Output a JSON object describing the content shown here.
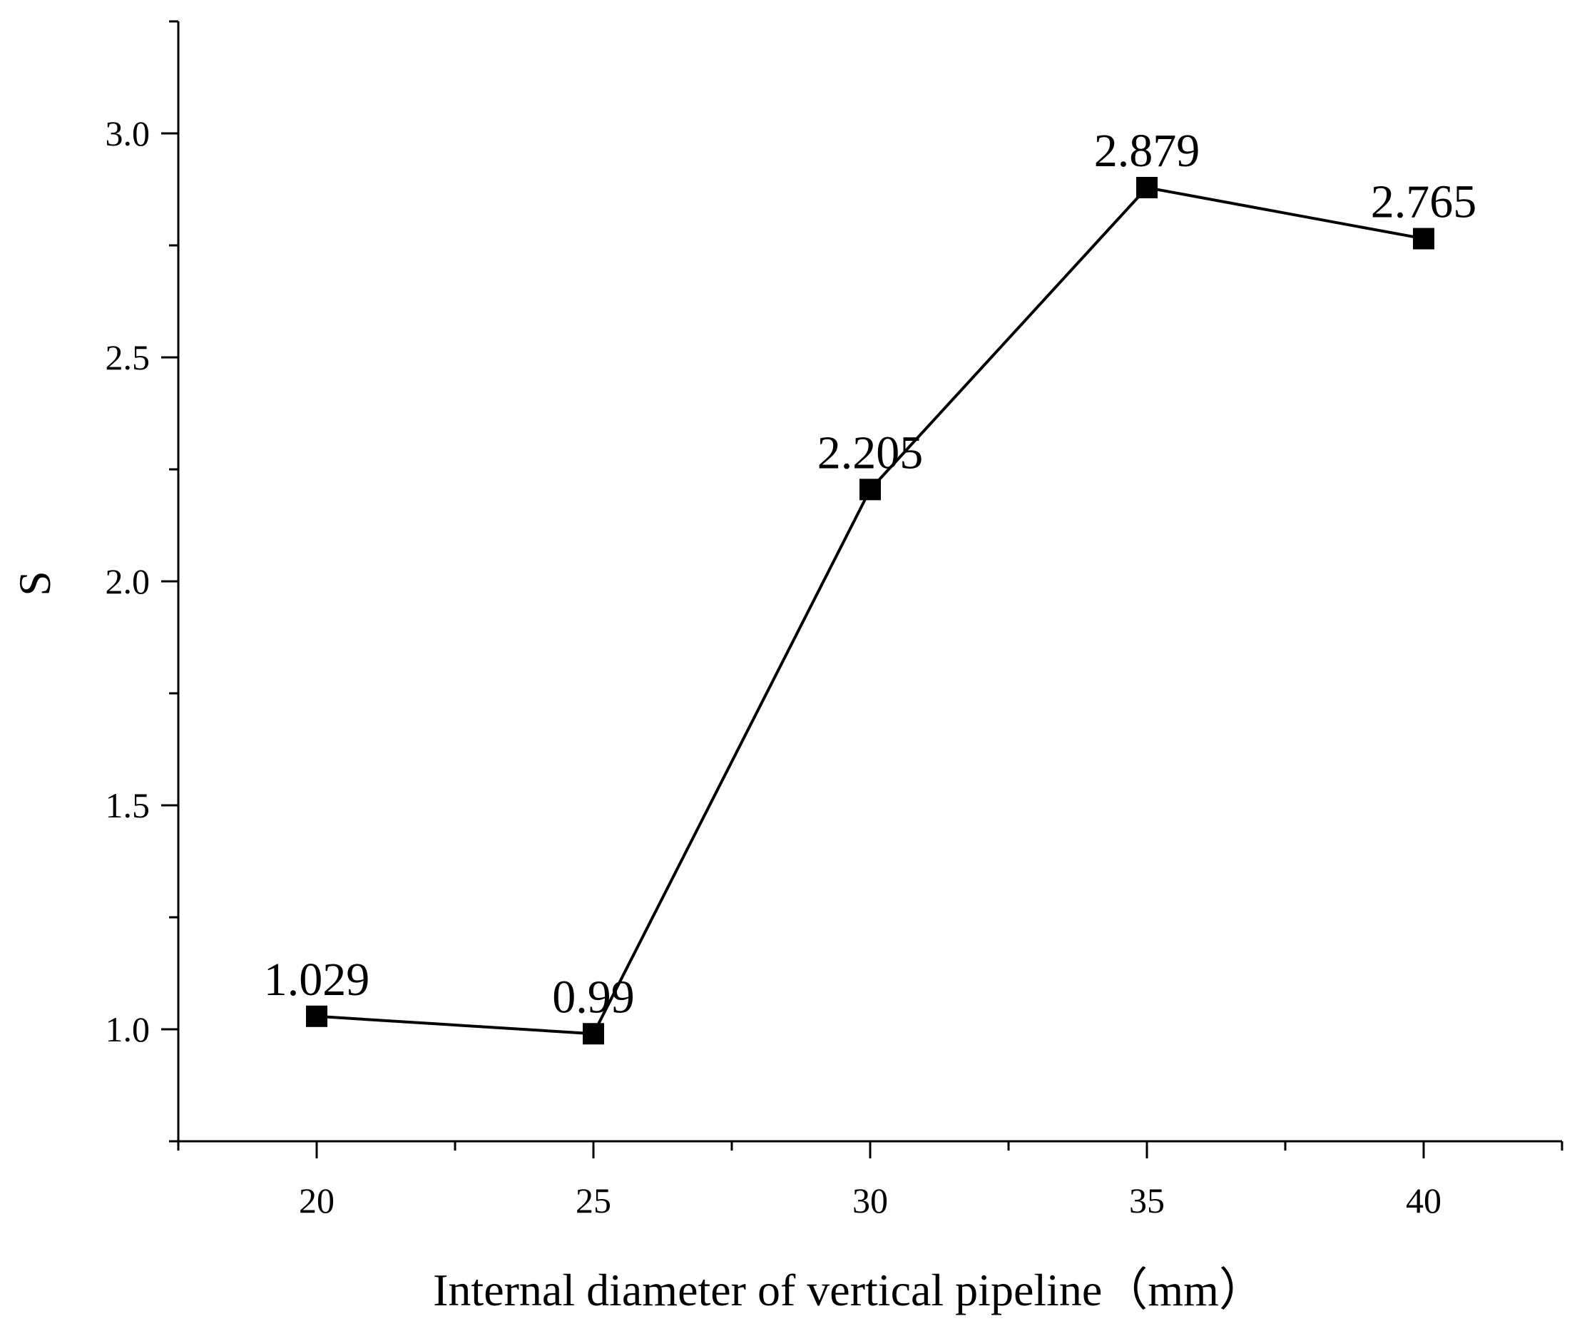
{
  "chart_data": {
    "type": "line",
    "x": [
      20,
      25,
      30,
      35,
      40
    ],
    "series": [
      {
        "name": "S",
        "values": [
          1.029,
          0.99,
          2.205,
          2.879,
          2.765
        ]
      }
    ],
    "data_labels": [
      "1.029",
      "0.99",
      "2.205",
      "2.879",
      "2.765"
    ],
    "xlabel": "Internal diameter of vertical pipeline（mm）",
    "ylabel": "S",
    "xlim": [
      17.5,
      42.5
    ],
    "ylim": [
      0.75,
      3.25
    ],
    "xticks": [
      20,
      25,
      30,
      35,
      40
    ],
    "xtick_labels": [
      "20",
      "25",
      "30",
      "35",
      "40"
    ],
    "yticks": [
      1.0,
      1.5,
      2.0,
      2.5,
      3.0
    ],
    "ytick_labels": [
      "1.0",
      "1.5",
      "2.0",
      "2.5",
      "3.0"
    ],
    "grid": false,
    "marker": "square",
    "colors": {
      "line": "#000000",
      "marker": "#000000",
      "axis": "#000000"
    }
  }
}
